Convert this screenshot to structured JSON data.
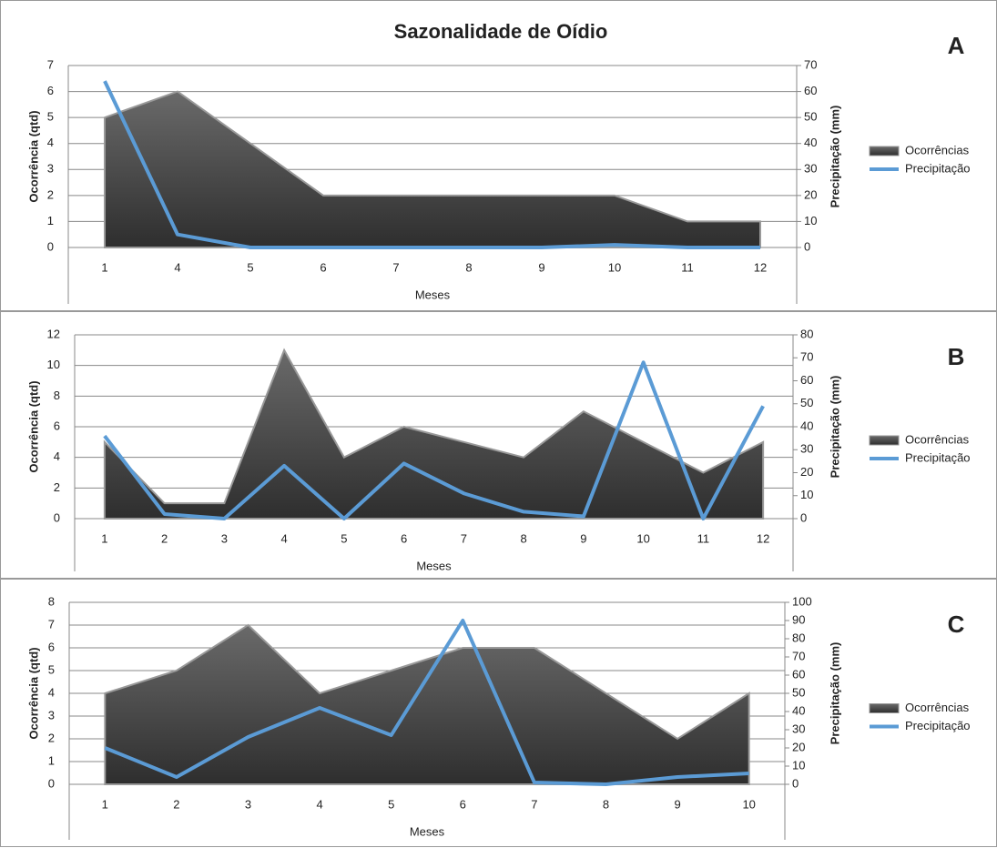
{
  "chart_data": [
    {
      "type": "combo",
      "title": "Sazonalidade de Oídio",
      "panel": "A",
      "x_label": "Meses",
      "y_label": "Ocorrência (qtd)",
      "y2_label": "Precipitação (mm)",
      "categories": [
        "1",
        "4",
        "5",
        "6",
        "7",
        "8",
        "9",
        "10",
        "11",
        "12"
      ],
      "series": [
        {
          "name": "Ocorrências",
          "type": "area",
          "color": "#4a4a4a",
          "values": [
            5,
            6,
            4,
            2,
            2,
            2,
            2,
            2,
            1,
            1
          ]
        },
        {
          "name": "Precipitação",
          "type": "line",
          "axis": "y2",
          "color": "#5b9bd5",
          "values": [
            64,
            5,
            0,
            0,
            0,
            0,
            0,
            1,
            0,
            0
          ]
        }
      ],
      "ylim": [
        0,
        7
      ],
      "yticks": [
        0,
        1,
        2,
        3,
        4,
        5,
        6,
        7
      ],
      "y2lim": [
        0,
        70
      ],
      "y2ticks": [
        0,
        10,
        20,
        30,
        40,
        50,
        60,
        70
      ],
      "grid": true,
      "legend": "right"
    },
    {
      "type": "combo",
      "panel": "B",
      "x_label": "Meses",
      "y_label": "Ocorrência (qtd)",
      "y2_label": "Precipitação (mm)",
      "categories": [
        "1",
        "2",
        "3",
        "4",
        "5",
        "6",
        "7",
        "8",
        "9",
        "10",
        "11",
        "12"
      ],
      "series": [
        {
          "name": "Ocorrências",
          "type": "area",
          "color": "#4a4a4a",
          "values": [
            5,
            1,
            1,
            11,
            4,
            6,
            5,
            4,
            7,
            5,
            3,
            5
          ]
        },
        {
          "name": "Precipitação",
          "type": "line",
          "axis": "y2",
          "color": "#5b9bd5",
          "values": [
            36,
            2,
            0,
            23,
            0,
            24,
            11,
            3,
            1,
            68,
            0,
            49
          ]
        }
      ],
      "ylim": [
        0,
        12
      ],
      "yticks": [
        0,
        2,
        4,
        6,
        8,
        10,
        12
      ],
      "y2lim": [
        0,
        80
      ],
      "y2ticks": [
        0,
        10,
        20,
        30,
        40,
        50,
        60,
        70,
        80
      ],
      "grid": true,
      "legend": "right"
    },
    {
      "type": "combo",
      "panel": "C",
      "x_label": "Meses",
      "y_label": "Ocorrência (qtd)",
      "y2_label": "Precipitação (mm)",
      "categories": [
        "1",
        "2",
        "3",
        "4",
        "5",
        "6",
        "7",
        "8",
        "9",
        "10"
      ],
      "series": [
        {
          "name": "Ocorrências",
          "type": "area",
          "color": "#4a4a4a",
          "values": [
            4,
            5,
            7,
            4,
            5,
            6,
            6,
            4,
            2,
            4
          ]
        },
        {
          "name": "Precipitação",
          "type": "line",
          "axis": "y2",
          "color": "#5b9bd5",
          "values": [
            20,
            4,
            26,
            42,
            27,
            90,
            1,
            0,
            4,
            6
          ]
        }
      ],
      "ylim": [
        0,
        8
      ],
      "yticks": [
        0,
        1,
        2,
        3,
        4,
        5,
        6,
        7,
        8
      ],
      "y2lim": [
        0,
        100
      ],
      "y2ticks": [
        0,
        10,
        20,
        30,
        40,
        50,
        60,
        70,
        80,
        90,
        100
      ],
      "grid": true,
      "legend": "right"
    }
  ]
}
